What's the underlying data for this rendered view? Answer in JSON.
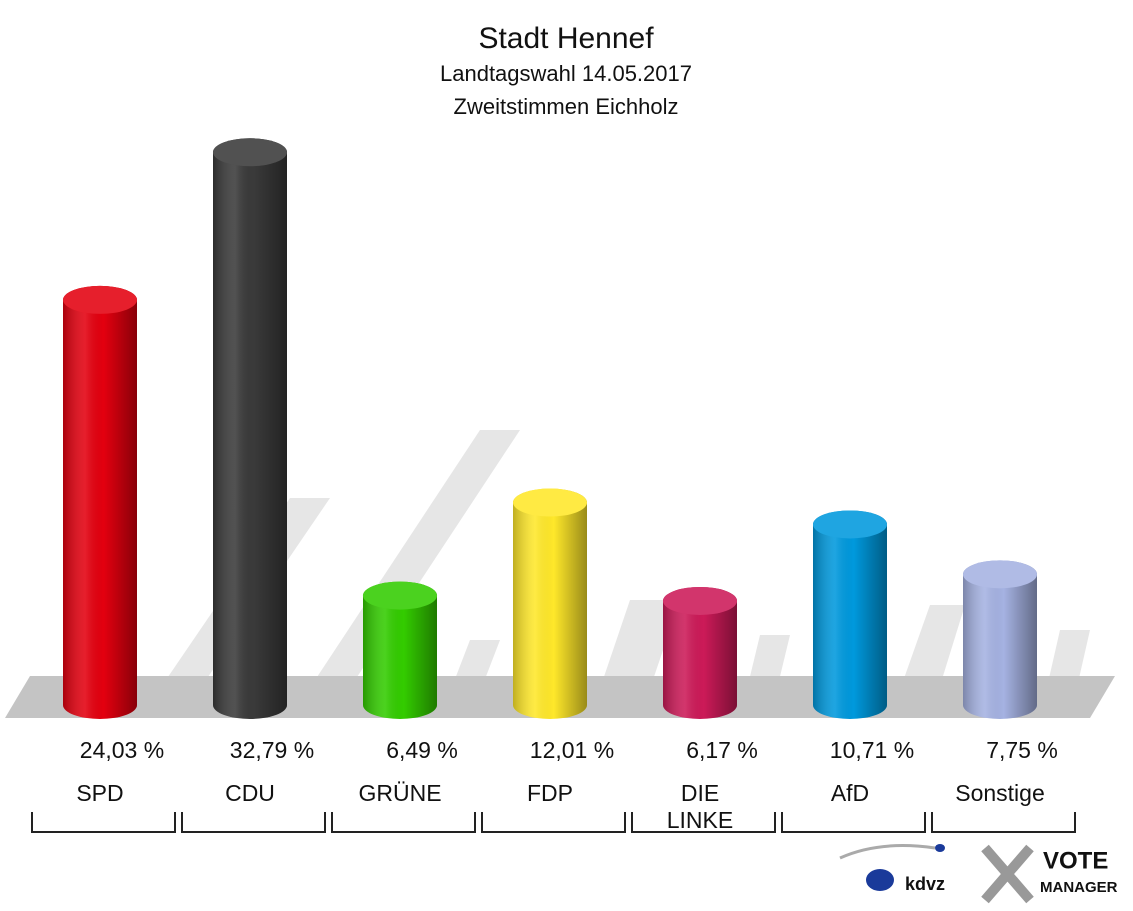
{
  "chart_data": {
    "type": "bar",
    "title": "Stadt Hennef",
    "subtitle": [
      "Landtagswahl 14.05.2017",
      "Zweitstimmen Eichholz"
    ],
    "categories": [
      "SPD",
      "CDU",
      "GRÜNE",
      "FDP",
      "DIE LINKE",
      "AfD",
      "Sonstige"
    ],
    "values": [
      24.03,
      32.79,
      6.49,
      12.01,
      6.17,
      10.71,
      7.75
    ],
    "value_labels": [
      "24,03 %",
      "32,79 %",
      "6,49 %",
      "12,01 %",
      "6,17 %",
      "10,71 %",
      "7,75 %"
    ],
    "colors": [
      "#e3000f",
      "#3a3a3a",
      "#33cc00",
      "#ffe82a",
      "#cc1a58",
      "#0099dd",
      "#a5b2e2"
    ],
    "ylim": [
      0,
      35
    ],
    "logo": [
      "kdvz",
      "VOTE",
      "MANAGER"
    ]
  }
}
